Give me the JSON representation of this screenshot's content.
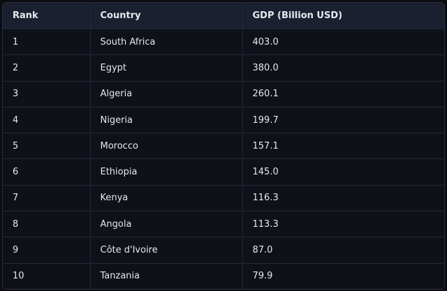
{
  "table": {
    "header": [
      "Rank",
      "Country",
      "GDP (Billion USD)"
    ],
    "rows": [
      [
        "1",
        "South Africa",
        "403.0"
      ],
      [
        "2",
        "Egypt",
        "380.0"
      ],
      [
        "3",
        "Algeria",
        "260.1"
      ],
      [
        "4",
        "Nigeria",
        "199.7"
      ],
      [
        "5",
        "Morocco",
        "157.1"
      ],
      [
        "6",
        "Ethiopia",
        "145.0"
      ],
      [
        "7",
        "Kenya",
        "116.3"
      ],
      [
        "8",
        "Angola",
        "113.3"
      ],
      [
        "9",
        "Côte d'Ivoire",
        "87.0"
      ],
      [
        "10",
        "Tanzania",
        "79.9"
      ]
    ]
  }
}
